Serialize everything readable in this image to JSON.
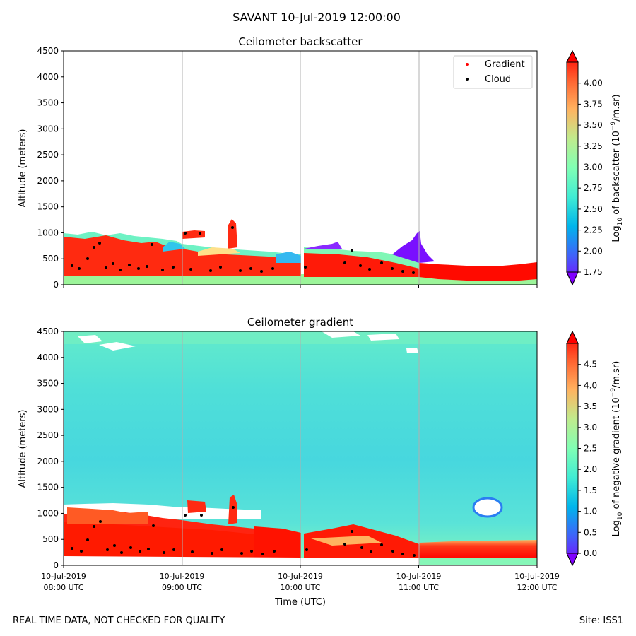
{
  "figure": {
    "suptitle": "SAVANT 10-Jul-2019 12:00:00",
    "footer_left": "REAL TIME DATA, NOT CHECKED FOR QUALITY",
    "footer_right": "Site: ISS1",
    "xlabel": "Time (UTC)",
    "x_ticks": [
      {
        "date": "10-Jul-2019",
        "time": "08:00 UTC"
      },
      {
        "date": "10-Jul-2019",
        "time": "09:00 UTC"
      },
      {
        "date": "10-Jul-2019",
        "time": "10:00 UTC"
      },
      {
        "date": "10-Jul-2019",
        "time": "11:00 UTC"
      },
      {
        "date": "10-Jul-2019",
        "time": "12:00 UTC"
      }
    ]
  },
  "chart_data": [
    {
      "type": "heatmap",
      "title": "Ceilometer backscatter",
      "xlabel": "",
      "ylabel": "Altitude (meters)",
      "x_range": [
        "2019-07-10 08:00",
        "2019-07-10 12:00"
      ],
      "ylim": [
        0,
        4500
      ],
      "y_ticks": [
        "0",
        "500",
        "1000",
        "1500",
        "2000",
        "2500",
        "3000",
        "3500",
        "4000",
        "4500"
      ],
      "grid": "vertical",
      "colormap": "rainbow",
      "colorbar": {
        "label_prefix": "Log",
        "label_sub": "10",
        "label_mid": " of backscatter (10",
        "label_exp": "−9",
        "label_suffix": "/m.sr)",
        "range": [
          1.75,
          4.25
        ],
        "ticks": [
          "1.75",
          "2.00",
          "2.25",
          "2.50",
          "2.75",
          "3.00",
          "3.25",
          "3.50",
          "3.75",
          "4.00"
        ]
      },
      "legend": {
        "placement": "upper-right",
        "entries": [
          {
            "label": "Gradient",
            "color": "#ff0000"
          },
          {
            "label": "Cloud",
            "color": "#000000"
          }
        ]
      }
    },
    {
      "type": "heatmap",
      "title": "Ceilometer gradient",
      "xlabel": "Time (UTC)",
      "ylabel": "Altitude (meters)",
      "x_range": [
        "2019-07-10 08:00",
        "2019-07-10 12:00"
      ],
      "ylim": [
        0,
        4500
      ],
      "y_ticks": [
        "0",
        "500",
        "1000",
        "1500",
        "2000",
        "2500",
        "3000",
        "3500",
        "4000",
        "4500"
      ],
      "grid": "vertical",
      "colormap": "rainbow",
      "colorbar": {
        "label_prefix": "Log",
        "label_sub": "10",
        "label_mid": " of negative gradient (10",
        "label_exp": "−9",
        "label_suffix": "/m.sr)",
        "range": [
          0.0,
          5.0
        ],
        "ticks": [
          "0.0",
          "0.5",
          "1.0",
          "1.5",
          "2.0",
          "2.5",
          "3.0",
          "3.5",
          "4.0",
          "4.5"
        ]
      }
    }
  ]
}
